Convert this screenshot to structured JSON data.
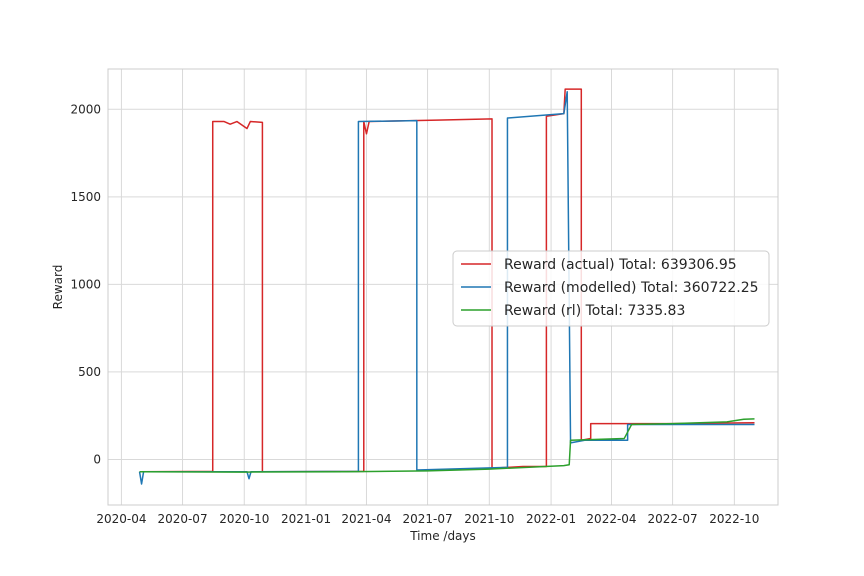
{
  "chart_data": {
    "type": "line",
    "title": "",
    "xlabel": "Time /days",
    "ylabel": "Reward",
    "x_axis": "date",
    "xlim": [
      "2020-03-12",
      "2022-12-05"
    ],
    "ylim": [
      -260,
      2230
    ],
    "grid": true,
    "legend_position": "center-right",
    "x_ticks": [
      "2020-04",
      "2020-07",
      "2020-10",
      "2021-01",
      "2021-04",
      "2021-07",
      "2021-10",
      "2022-01",
      "2022-04",
      "2022-07",
      "2022-10"
    ],
    "y_ticks": [
      0,
      500,
      1000,
      1500,
      2000
    ],
    "series": [
      {
        "name": "Reward (actual) Total: 639306.95",
        "color": "#d62728",
        "points": [
          [
            "2020-04-28",
            -70
          ],
          [
            "2020-08-15",
            -68
          ],
          [
            "2020-08-15",
            1930
          ],
          [
            "2020-09-01",
            1930
          ],
          [
            "2020-09-10",
            1915
          ],
          [
            "2020-09-20",
            1930
          ],
          [
            "2020-10-05",
            1890
          ],
          [
            "2020-10-10",
            1930
          ],
          [
            "2020-10-28",
            1925
          ],
          [
            "2020-10-28",
            -70
          ],
          [
            "2021-03-28",
            -68
          ],
          [
            "2021-03-28",
            1930
          ],
          [
            "2021-04-01",
            1860
          ],
          [
            "2021-04-05",
            1930
          ],
          [
            "2021-07-15",
            1938
          ],
          [
            "2021-10-05",
            1945
          ],
          [
            "2021-10-05",
            -50
          ],
          [
            "2021-11-20",
            -40
          ],
          [
            "2021-12-25",
            -40
          ],
          [
            "2021-12-25",
            1960
          ],
          [
            "2022-01-20",
            1975
          ],
          [
            "2022-01-22",
            2115
          ],
          [
            "2022-02-15",
            2115
          ],
          [
            "2022-02-15",
            110
          ],
          [
            "2022-03-01",
            120
          ],
          [
            "2022-03-01",
            205
          ],
          [
            "2022-04-10",
            205
          ],
          [
            "2022-07-01",
            205
          ],
          [
            "2022-10-31",
            210
          ]
        ]
      },
      {
        "name": "Reward (modelled) Total: 360722.25",
        "color": "#1f77b4",
        "points": [
          [
            "2020-04-28",
            -70
          ],
          [
            "2020-05-01",
            -140
          ],
          [
            "2020-05-04",
            -70
          ],
          [
            "2020-10-05",
            -70
          ],
          [
            "2020-10-08",
            -110
          ],
          [
            "2020-10-11",
            -70
          ],
          [
            "2021-03-20",
            -68
          ],
          [
            "2021-03-20",
            1930
          ],
          [
            "2021-06-15",
            1935
          ],
          [
            "2021-06-15",
            -60
          ],
          [
            "2021-10-28",
            -45
          ],
          [
            "2021-10-28",
            1950
          ],
          [
            "2022-01-20",
            1975
          ],
          [
            "2022-01-25",
            2100
          ],
          [
            "2022-01-30",
            95
          ],
          [
            "2022-02-20",
            110
          ],
          [
            "2022-04-25",
            110
          ],
          [
            "2022-04-25",
            200
          ],
          [
            "2022-10-31",
            200
          ]
        ]
      },
      {
        "name": "Reward (rl) Total: 7335.83",
        "color": "#2ca02c",
        "points": [
          [
            "2020-04-28",
            -70
          ],
          [
            "2020-10-01",
            -72
          ],
          [
            "2021-03-01",
            -70
          ],
          [
            "2021-07-01",
            -65
          ],
          [
            "2021-10-01",
            -55
          ],
          [
            "2022-01-20",
            -35
          ],
          [
            "2022-01-28",
            -30
          ],
          [
            "2022-01-30",
            110
          ],
          [
            "2022-04-20",
            120
          ],
          [
            "2022-05-01",
            200
          ],
          [
            "2022-07-01",
            205
          ],
          [
            "2022-09-20",
            215
          ],
          [
            "2022-10-15",
            230
          ],
          [
            "2022-10-31",
            232
          ]
        ]
      }
    ]
  }
}
